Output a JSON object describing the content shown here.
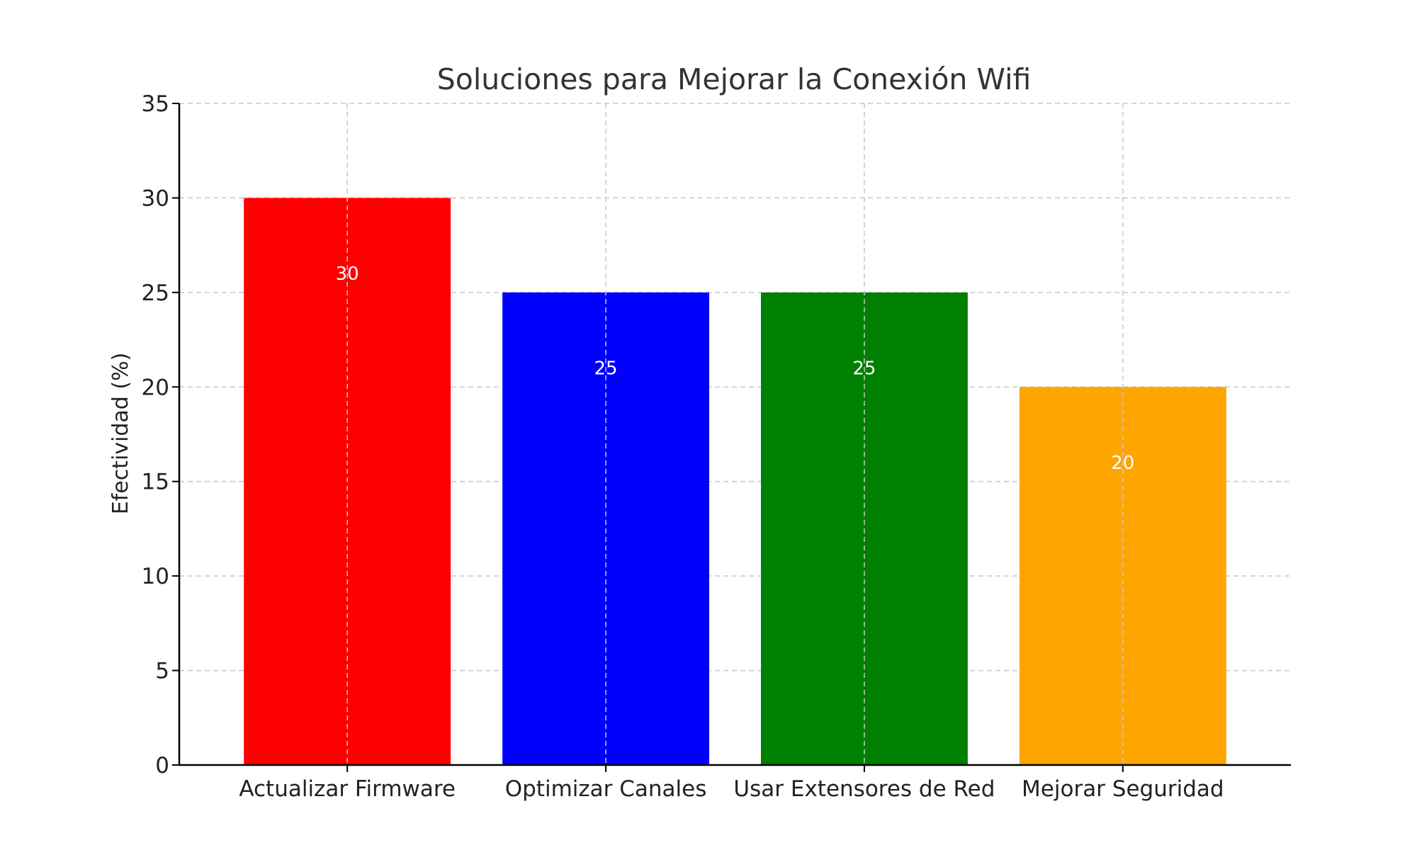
{
  "chart_data": {
    "type": "bar",
    "title": "Soluciones para Mejorar la Conexión Wifi",
    "xlabel": "",
    "ylabel": "Efectividad (%)",
    "categories": [
      "Actualizar Firmware",
      "Optimizar Canales",
      "Usar Extensores de Red",
      "Mejorar Seguridad"
    ],
    "values": [
      30,
      25,
      25,
      20
    ],
    "data_labels": [
      "30",
      "25",
      "25",
      "20"
    ],
    "colors": [
      "#ff0000",
      "#0000ff",
      "#008000",
      "#ffa500"
    ],
    "ylim": [
      0,
      35
    ],
    "yticks": [
      0,
      5,
      10,
      15,
      20,
      25,
      30,
      35
    ],
    "ytick_labels": [
      "0",
      "5",
      "10",
      "15",
      "20",
      "25",
      "30",
      "35"
    ],
    "grid": true,
    "legend": "none"
  }
}
